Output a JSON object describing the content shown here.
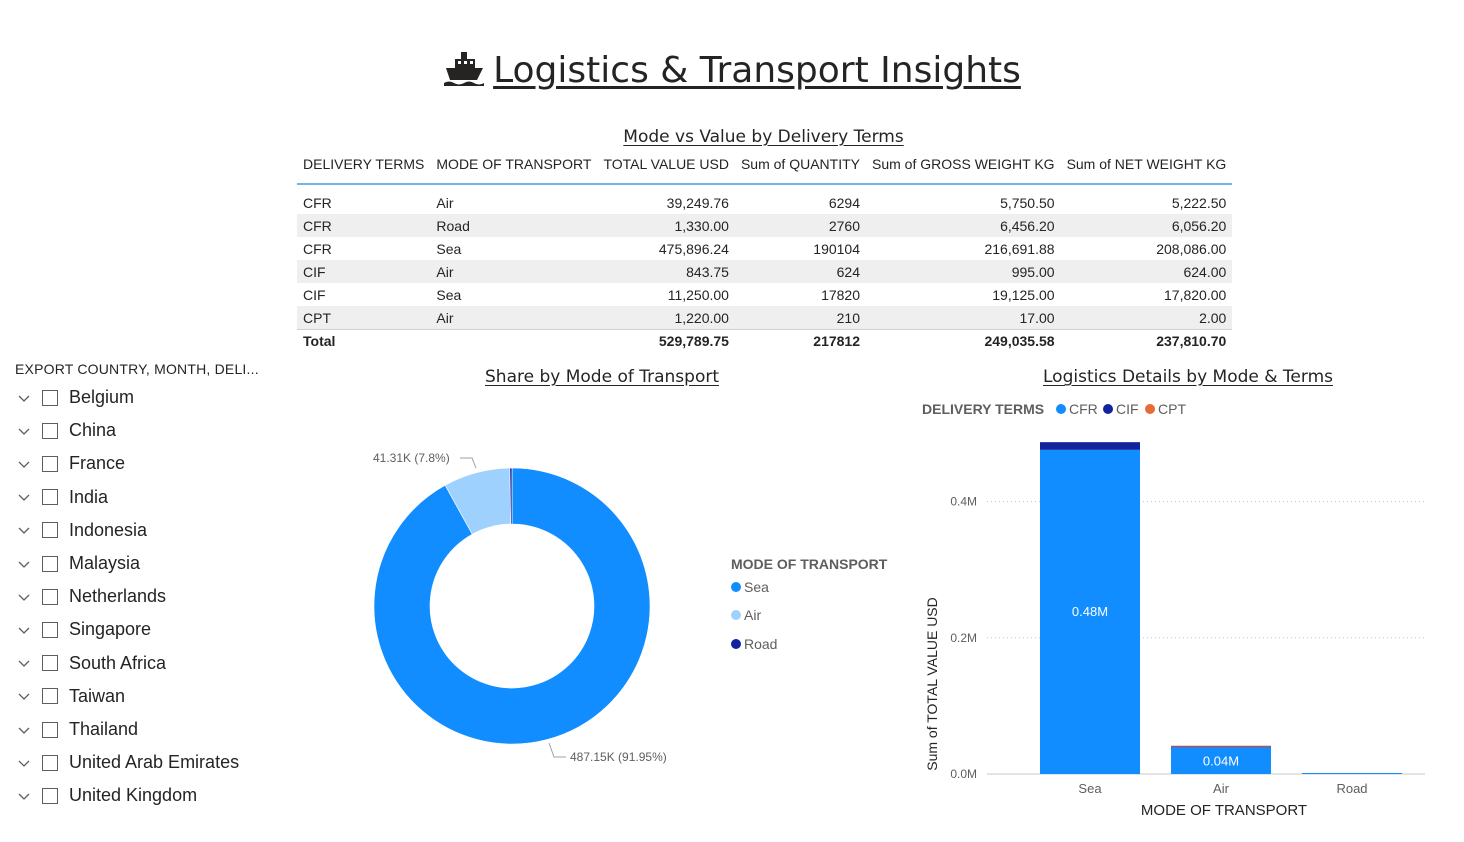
{
  "page": {
    "title": "Logistics & Transport Insights",
    "title_icon": "ship-icon"
  },
  "table": {
    "title": "Mode vs Value by Delivery Terms",
    "columns": [
      "DELIVERY TERMS",
      "MODE OF TRANSPORT",
      "TOTAL VALUE USD",
      "Sum of QUANTITY",
      "Sum of GROSS WEIGHT KG",
      "Sum of NET WEIGHT KG"
    ],
    "rows": [
      [
        "CFR",
        "Air",
        "39,249.76",
        "6294",
        "5,750.50",
        "5,222.50"
      ],
      [
        "CFR",
        "Road",
        "1,330.00",
        "2760",
        "6,456.20",
        "6,056.20"
      ],
      [
        "CFR",
        "Sea",
        "475,896.24",
        "190104",
        "216,691.88",
        "208,086.00"
      ],
      [
        "CIF",
        "Air",
        "843.75",
        "624",
        "995.00",
        "624.00"
      ],
      [
        "CIF",
        "Sea",
        "11,250.00",
        "17820",
        "19,125.00",
        "17,820.00"
      ],
      [
        "CPT",
        "Air",
        "1,220.00",
        "210",
        "17.00",
        "2.00"
      ]
    ],
    "total": [
      "Total",
      "",
      "529,789.75",
      "217812",
      "249,035.58",
      "237,810.70"
    ]
  },
  "slicer": {
    "header": "EXPORT COUNTRY, MONTH, DELI...",
    "items": [
      "Belgium",
      "China",
      "France",
      "India",
      "Indonesia",
      "Malaysia",
      "Netherlands",
      "Singapore",
      "South Africa",
      "Taiwan",
      "Thailand",
      "United Arab Emirates",
      "United Kingdom"
    ]
  },
  "donut": {
    "title": "Share by Mode of Transport",
    "legend_title": "MODE OF TRANSPORT",
    "labels": {
      "air": "41.31K (7.8%)",
      "sea": "487.15K (91.95%)"
    }
  },
  "bar": {
    "title": "Logistics Details by Mode & Terms",
    "legend_title": "DELIVERY TERMS",
    "ylabel": "Sum of TOTAL VALUE USD",
    "xlabel": "MODE OF TRANSPORT",
    "ytick_labels": [
      "0.0M",
      "0.2M",
      "0.4M"
    ],
    "data_labels": {
      "sea": "0.48M",
      "air": "0.04M"
    }
  },
  "colors": {
    "CFR": "#118DFF",
    "CIF": "#12239E",
    "CPT": "#E66C37",
    "Sea": "#118DFF",
    "Air": "#9FD1FF",
    "Road": "#12239E"
  },
  "chart_data": [
    {
      "type": "pie",
      "variant": "donut",
      "title": "Share by Mode of Transport",
      "legend_title": "MODE OF TRANSPORT",
      "legend_position": "right",
      "categories": [
        "Sea",
        "Air",
        "Road"
      ],
      "values": [
        487146.24,
        41313.51,
        1330.0
      ],
      "data_labels": [
        "487.15K (91.95%)",
        "41.31K (7.8%)",
        ""
      ]
    },
    {
      "type": "bar",
      "stacked": true,
      "title": "Logistics Details by Mode & Terms",
      "xlabel": "MODE OF TRANSPORT",
      "ylabel": "Sum of TOTAL VALUE USD",
      "legend_title": "DELIVERY TERMS",
      "legend_position": "top-left",
      "categories": [
        "Sea",
        "Air",
        "Road"
      ],
      "series": [
        {
          "name": "CFR",
          "values": [
            475896.24,
            39249.76,
            1330.0
          ]
        },
        {
          "name": "CIF",
          "values": [
            11250.0,
            843.75,
            0
          ]
        },
        {
          "name": "CPT",
          "values": [
            0,
            1220.0,
            0
          ]
        }
      ],
      "data_labels": [
        "0.48M",
        "0.04M",
        ""
      ],
      "yticks": [
        0,
        200000,
        400000
      ],
      "ylim": [
        0,
        500000
      ],
      "grid": true
    }
  ]
}
